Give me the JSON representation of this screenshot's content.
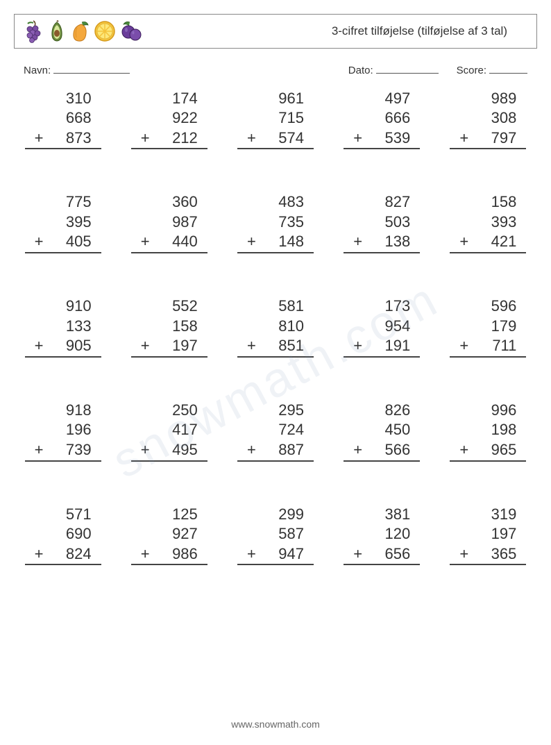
{
  "header": {
    "title": "3-cifret tilføjelse (tilføjelse af 3 tal)"
  },
  "info": {
    "name_label": "Navn:",
    "date_label": "Dato:",
    "score_label": "Score:"
  },
  "operator": "+",
  "problems": [
    [
      310,
      668,
      873
    ],
    [
      174,
      922,
      212
    ],
    [
      961,
      715,
      574
    ],
    [
      497,
      666,
      539
    ],
    [
      989,
      308,
      797
    ],
    [
      775,
      395,
      405
    ],
    [
      360,
      987,
      440
    ],
    [
      483,
      735,
      148
    ],
    [
      827,
      503,
      138
    ],
    [
      158,
      393,
      421
    ],
    [
      910,
      133,
      905
    ],
    [
      552,
      158,
      197
    ],
    [
      581,
      810,
      851
    ],
    [
      173,
      954,
      191
    ],
    [
      596,
      179,
      711
    ],
    [
      918,
      196,
      739
    ],
    [
      250,
      417,
      495
    ],
    [
      295,
      724,
      887
    ],
    [
      826,
      450,
      566
    ],
    [
      996,
      198,
      965
    ],
    [
      571,
      690,
      824
    ],
    [
      125,
      927,
      986
    ],
    [
      299,
      587,
      947
    ],
    [
      381,
      120,
      656
    ],
    [
      319,
      197,
      365
    ]
  ],
  "style": {
    "columns": 5,
    "rows": 5,
    "font_size_problem": 22,
    "font_size_title": 17,
    "text_color": "#333333",
    "border_color": "#888888",
    "underline_color": "#444444",
    "background": "#ffffff"
  },
  "footer": "www.snowmath.com",
  "watermark": "snowmath.com"
}
